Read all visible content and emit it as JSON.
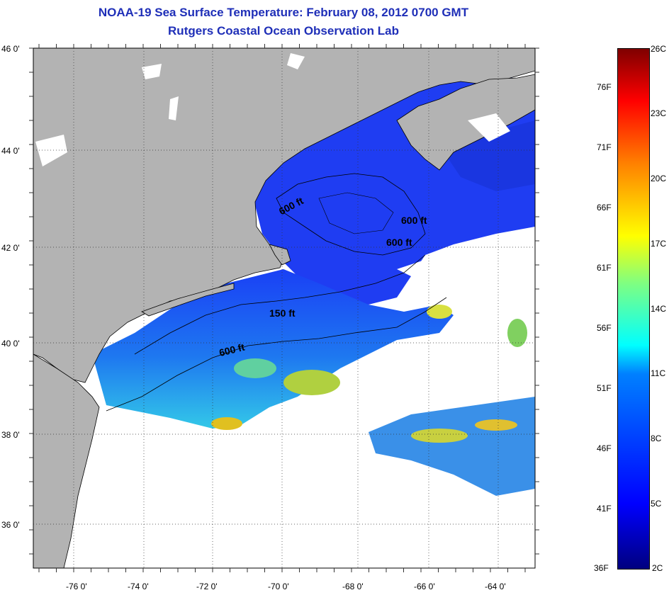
{
  "header": {
    "title": "NOAA-19 Sea Surface Temperature:  February 08, 2012 0700 GMT",
    "subtitle": "Rutgers Coastal Ocean Observation Lab"
  },
  "map": {
    "lat_labels": [
      "46 0'",
      "44 0'",
      "42 0'",
      "40 0'",
      "38 0'",
      "36 0'"
    ],
    "lon_labels": [
      "-76 0'",
      "-74 0'",
      "-72 0'",
      "-70 0'",
      "-68 0'",
      "-66 0'",
      "-64 0'"
    ],
    "contour_labels": [
      "600 ft",
      "600 ft",
      "600 ft",
      "150 ft",
      "600 ft"
    ],
    "colors": {
      "land": "#b3b3b3",
      "water_cold": "#1a3cf0",
      "cloud": "#ffffff",
      "grid": "#333333"
    }
  },
  "colorbar": {
    "fahrenheit_labels": [
      "76F",
      "71F",
      "66F",
      "61F",
      "56F",
      "51F",
      "46F",
      "41F",
      "36F"
    ],
    "celsius_labels": [
      "26C",
      "23C",
      "20C",
      "17C",
      "14C",
      "11C",
      "8C",
      "5C",
      "2C"
    ]
  }
}
